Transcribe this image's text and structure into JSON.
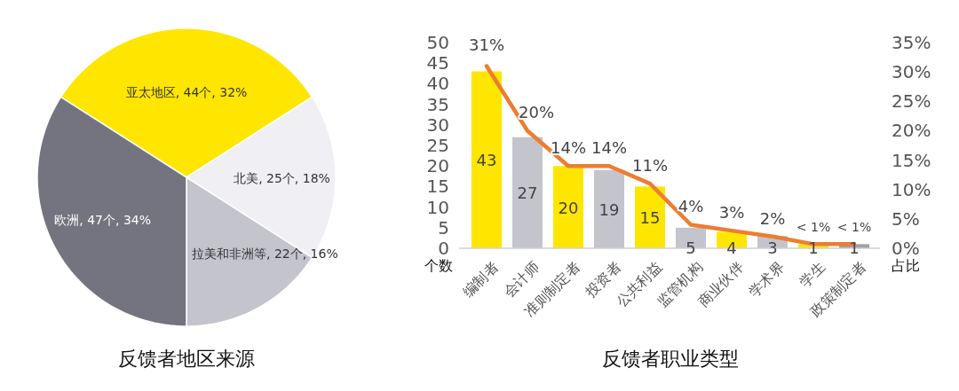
{
  "chart_data": [
    {
      "type": "pie",
      "title": "反馈者地区来源",
      "categories": [
        "亚太地区",
        "北美",
        "拉美和非洲等",
        "欧洲"
      ],
      "values": [
        44,
        25,
        22,
        47
      ],
      "colors": [
        "#ffe600",
        "#f0eff4",
        "#c4c4cd",
        "#747480"
      ],
      "value_labels": [
        "44个, 32%",
        "25个, 18%",
        "22个, 16%",
        "47个, 34%"
      ]
    },
    {
      "type": "bar",
      "title": "反馈者职业类型",
      "categories": [
        "编制者",
        "会计师",
        "准则制定者",
        "投资者",
        "公共利益",
        "监管机构",
        "商业伙伴",
        "学术界",
        "学生",
        "政策制定者"
      ],
      "ylabel": "个数",
      "y2label": "占比",
      "ylim": [
        0,
        50
      ],
      "yticks": [
        0,
        5,
        10,
        15,
        20,
        25,
        30,
        35,
        40,
        45,
        50
      ],
      "y2lim": [
        0,
        35
      ],
      "y2ticks": [
        {
          "value": 0,
          "label": "0%"
        },
        {
          "value": 5,
          "label": "5%"
        },
        {
          "value": 10,
          "label": "10%"
        },
        {
          "value": 15,
          "label": "15%"
        },
        {
          "value": 20,
          "label": "20%"
        },
        {
          "value": 25,
          "label": "25%"
        },
        {
          "value": 30,
          "label": "30%"
        },
        {
          "value": 35,
          "label": "35%"
        }
      ],
      "series": [
        {
          "type": "bar",
          "colors": [
            "#ffe600",
            "#c4c4cd",
            "#ffe600",
            "#c4c4cd",
            "#ffe600",
            "#c4c4cd",
            "#ffe600",
            "#c4c4cd",
            "#ffe600",
            "#a0a0a8"
          ],
          "values": [
            43,
            27,
            20,
            19,
            15,
            5,
            4,
            3,
            1,
            1
          ],
          "value_labels": [
            "43",
            "27",
            "20",
            "19",
            "15",
            "5",
            "4",
            "3",
            "1",
            "1"
          ]
        },
        {
          "type": "line",
          "axis": "y2",
          "color": "#ed7d31",
          "values": [
            31,
            20,
            14,
            14,
            11,
            4,
            3,
            2,
            0.7,
            0.7
          ],
          "value_labels": [
            "31%",
            "20%",
            "14%",
            "14%",
            "11%",
            "4%",
            "3%",
            "2%",
            "< 1%",
            "< 1%"
          ]
        }
      ]
    }
  ]
}
